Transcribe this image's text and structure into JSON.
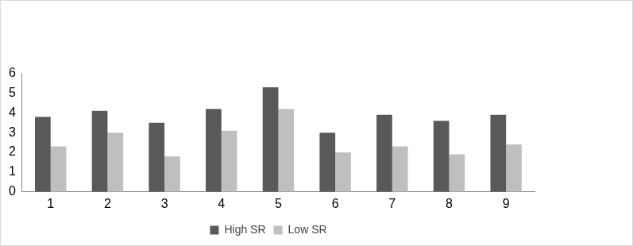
{
  "chart_data": {
    "type": "bar",
    "categories": [
      "1",
      "2",
      "3",
      "4",
      "5",
      "6",
      "7",
      "8",
      "9"
    ],
    "series": [
      {
        "name": "High SR",
        "color": "#595959",
        "values": [
          3.8,
          4.1,
          3.5,
          4.2,
          5.3,
          3.0,
          3.9,
          3.6,
          3.9
        ]
      },
      {
        "name": "Low SR",
        "color": "#bfbfbf",
        "values": [
          2.3,
          3.0,
          1.8,
          3.1,
          4.2,
          2.0,
          2.3,
          1.9,
          2.4
        ]
      }
    ],
    "ylim": [
      0,
      6
    ],
    "yticks": [
      0,
      1,
      2,
      3,
      4,
      5,
      6
    ],
    "grid": false,
    "legend": "bottom"
  }
}
